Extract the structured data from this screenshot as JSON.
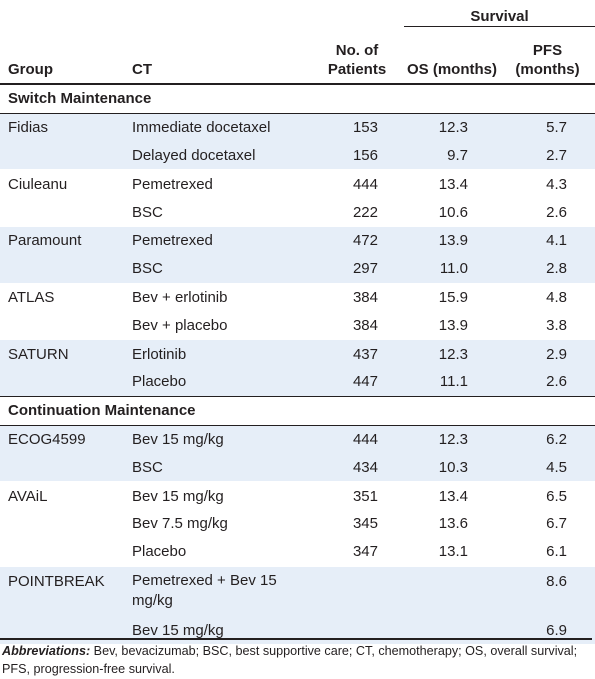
{
  "header": {
    "survival": "Survival",
    "group": "Group",
    "ct": "CT",
    "patients": "No. of Patients",
    "os": "OS (months)",
    "pfs": "PFS (months)"
  },
  "sections": [
    {
      "title": "Switch Maintenance",
      "groups": [
        {
          "name": "Fidias",
          "rows": [
            {
              "ct": "Immediate docetaxel",
              "n": "153",
              "os": "12.3",
              "pfs": "5.7"
            },
            {
              "ct": "Delayed docetaxel",
              "n": "156",
              "os": "9.7",
              "pfs": "2.7"
            }
          ]
        },
        {
          "name": "Ciuleanu",
          "rows": [
            {
              "ct": "Pemetrexed",
              "n": "444",
              "os": "13.4",
              "pfs": "4.3"
            },
            {
              "ct": "BSC",
              "n": "222",
              "os": "10.6",
              "pfs": "2.6"
            }
          ]
        },
        {
          "name": "Paramount",
          "rows": [
            {
              "ct": "Pemetrexed",
              "n": "472",
              "os": "13.9",
              "pfs": "4.1"
            },
            {
              "ct": "BSC",
              "n": "297",
              "os": "11.0",
              "pfs": "2.8"
            }
          ]
        },
        {
          "name": "ATLAS",
          "rows": [
            {
              "ct": "Bev + erlotinib",
              "n": "384",
              "os": "15.9",
              "pfs": "4.8"
            },
            {
              "ct": "Bev + placebo",
              "n": "384",
              "os": "13.9",
              "pfs": "3.8"
            }
          ]
        },
        {
          "name": "SATURN",
          "rows": [
            {
              "ct": "Erlotinib",
              "n": "437",
              "os": "12.3",
              "pfs": "2.9"
            },
            {
              "ct": "Placebo",
              "n": "447",
              "os": "11.1",
              "pfs": "2.6"
            }
          ]
        }
      ]
    },
    {
      "title": "Continuation Maintenance",
      "groups": [
        {
          "name": "ECOG4599",
          "rows": [
            {
              "ct": "Bev 15 mg/kg",
              "n": "444",
              "os": "12.3",
              "pfs": "6.2"
            },
            {
              "ct": "BSC",
              "n": "434",
              "os": "10.3",
              "pfs": "4.5"
            }
          ]
        },
        {
          "name": "AVAiL",
          "rows": [
            {
              "ct": "Bev 15 mg/kg",
              "n": "351",
              "os": "13.4",
              "pfs": "6.5"
            },
            {
              "ct": "Bev 7.5 mg/kg",
              "n": "345",
              "os": "13.6",
              "pfs": "6.7"
            },
            {
              "ct": "Placebo",
              "n": "347",
              "os": "13.1",
              "pfs": "6.1"
            }
          ]
        },
        {
          "name": "POINTBREAK",
          "rows": [
            {
              "ct": "Pemetrexed + Bev 15 mg/kg",
              "n": "",
              "os": "",
              "pfs": "8.6",
              "twoline": true
            },
            {
              "ct": "Bev 15 mg/kg",
              "n": "",
              "os": "",
              "pfs": "6.9"
            }
          ]
        }
      ]
    }
  ],
  "footnote": {
    "label": "Abbreviations:",
    "text": " Bev, bevacizumab; BSC, best supportive care; CT, chemotherapy; OS, overall survival; PFS, progression-free survival."
  }
}
